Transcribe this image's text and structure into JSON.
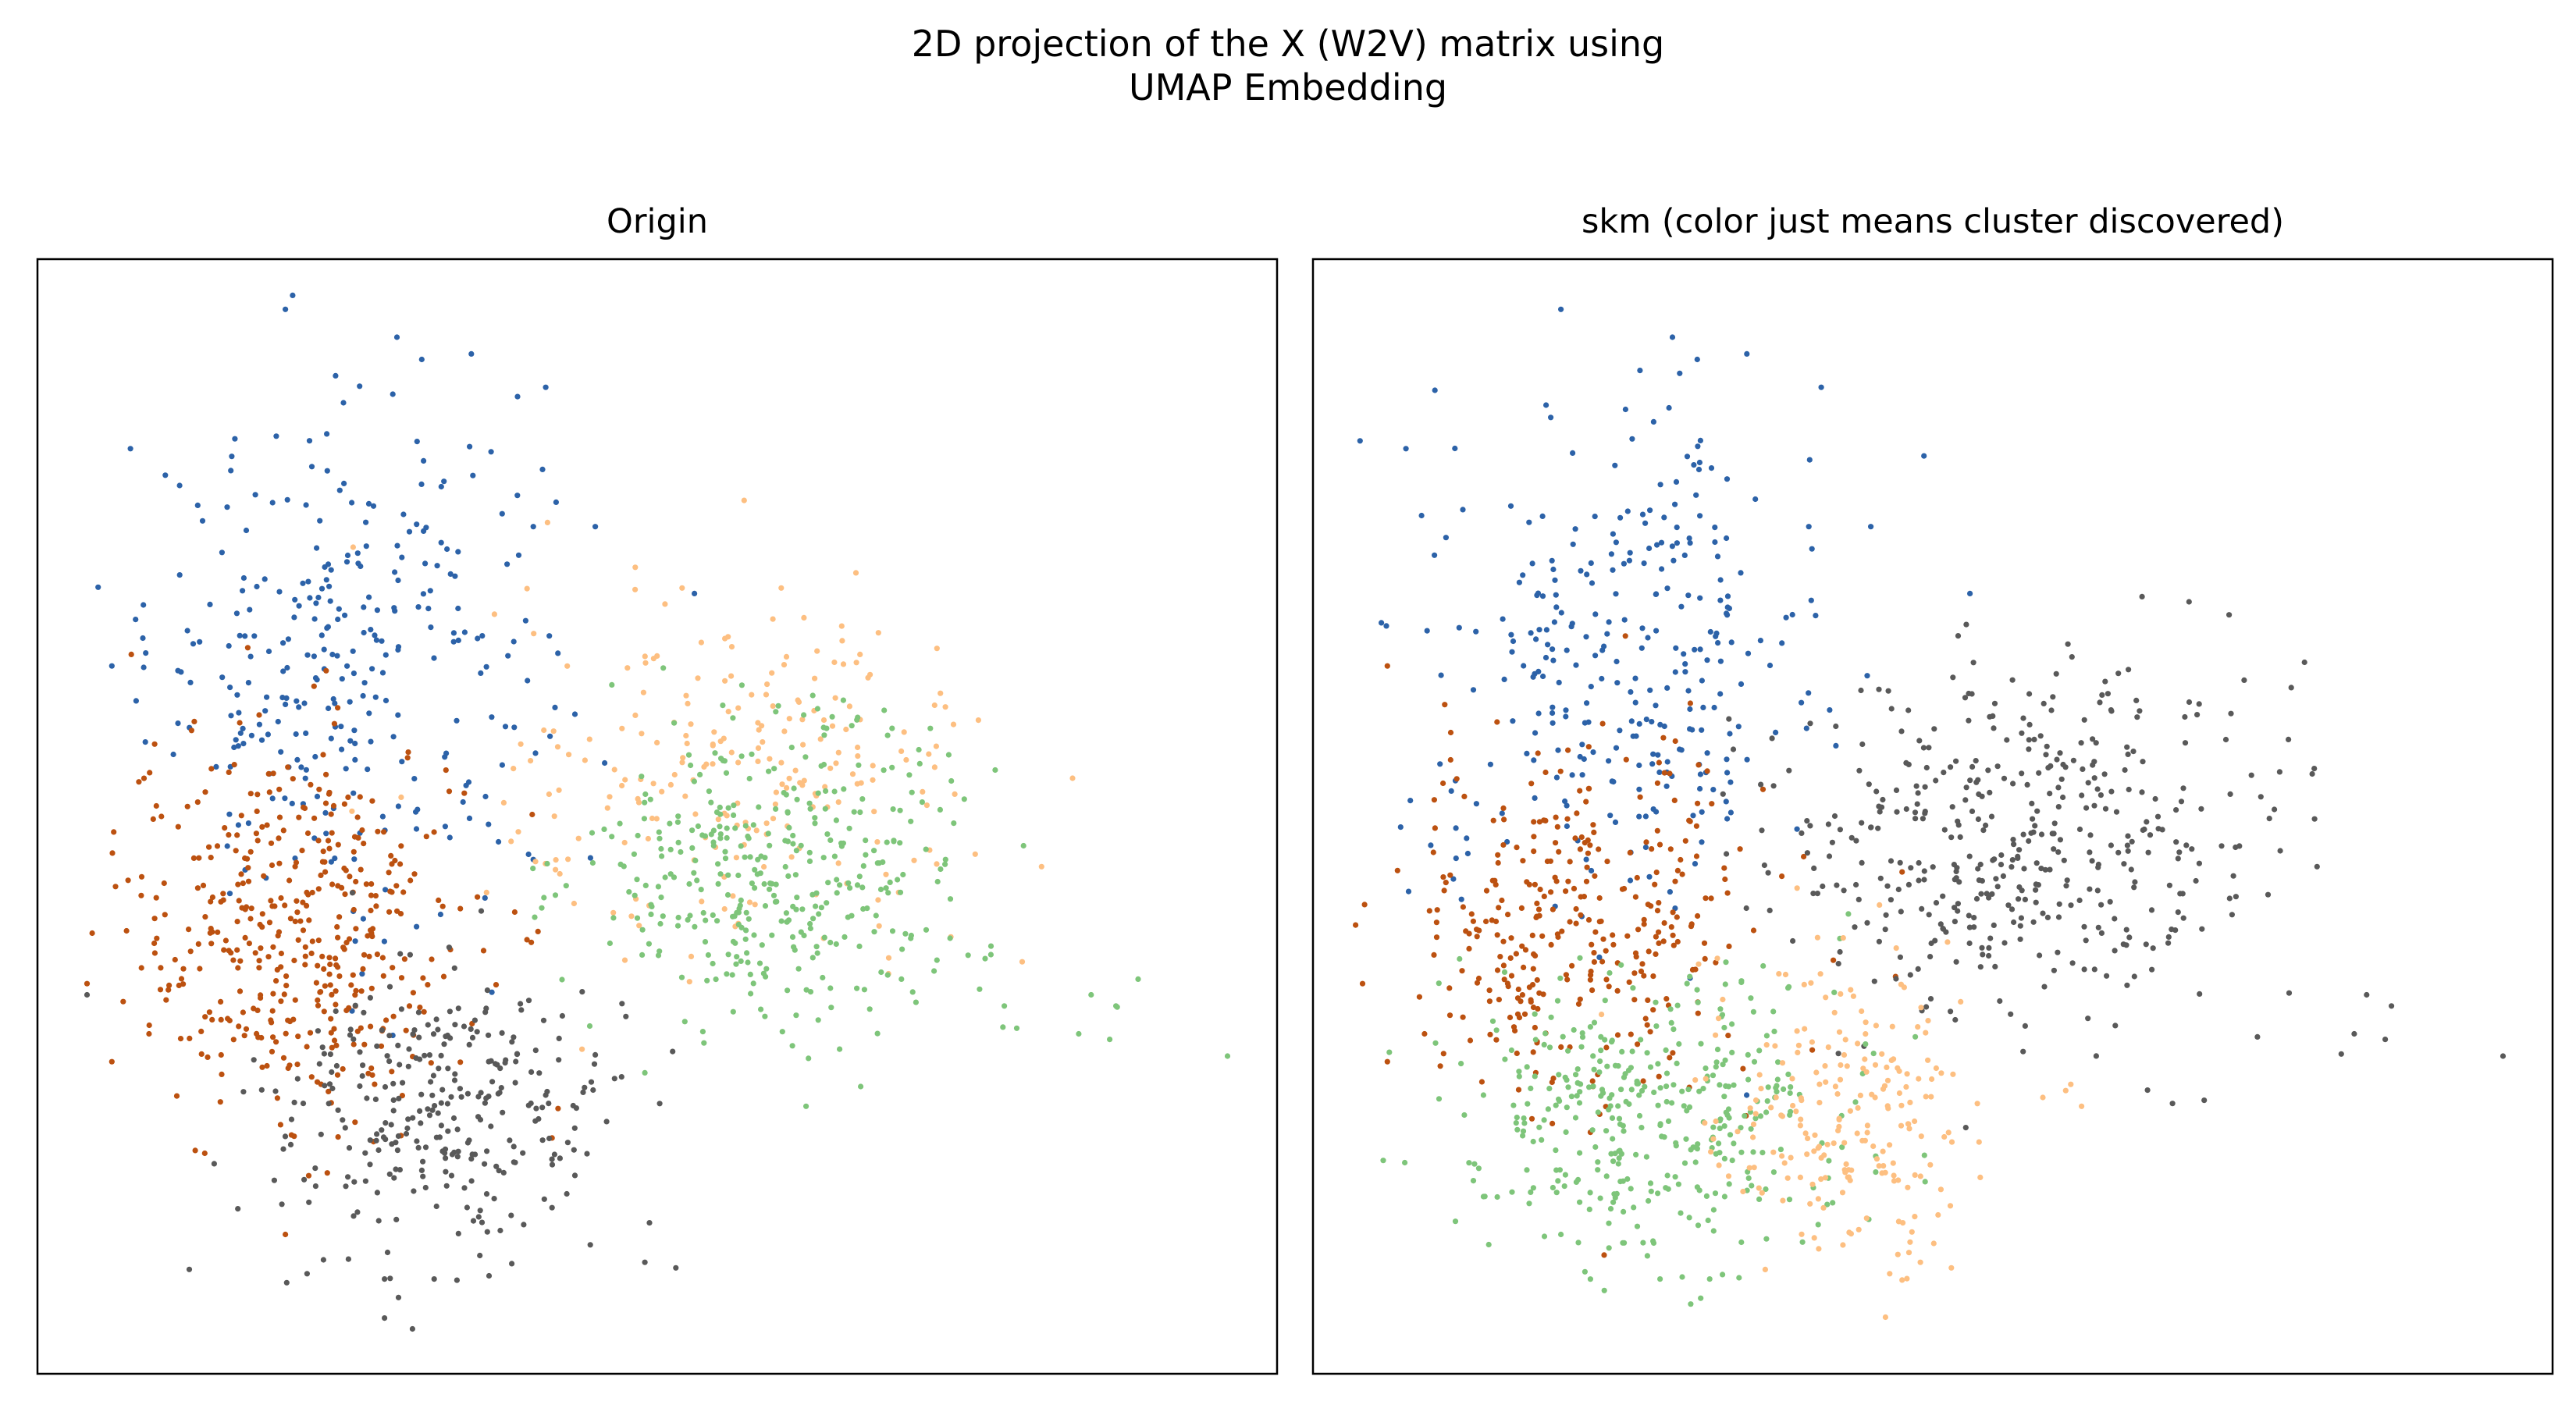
{
  "figure": {
    "title_line1": "2D projection of the X (W2V) matrix using",
    "title_line2": "UMAP Embedding"
  },
  "colors": {
    "blue": "#2c62a8",
    "orange_dark": "#bc5110",
    "orange_light": "#fdbf81",
    "green": "#7ec57a",
    "gray": "#595959"
  },
  "chart_data": [
    {
      "type": "scatter",
      "title": "Origin",
      "xlabel": "",
      "ylabel": "",
      "ticks": "none",
      "xlim": [
        0,
        100
      ],
      "ylim": [
        0,
        100
      ],
      "clusters": [
        {
          "color": "#2c62a8",
          "n": 300,
          "center": [
            25,
            64
          ],
          "spread": [
            8,
            11
          ],
          "extra": [
            [
              20,
              95.5
            ],
            [
              29,
              93
            ],
            [
              31,
              91
            ],
            [
              35,
              91.5
            ],
            [
              41,
              88.5
            ],
            [
              7.5,
              83
            ],
            [
              6,
              63.5
            ],
            [
              8.5,
              66
            ],
            [
              40,
              76
            ],
            [
              45,
              76
            ],
            [
              53,
              70
            ]
          ]
        },
        {
          "color": "#bc5110",
          "n": 420,
          "center": [
            21,
            40
          ],
          "spread": [
            7,
            9
          ],
          "extra": [
            [
              4,
              35
            ],
            [
              6,
              28
            ],
            [
              9,
              30.5
            ],
            [
              10,
              50
            ],
            [
              15,
              42.5
            ],
            [
              20,
              12.5
            ]
          ]
        },
        {
          "color": "#fdbf81",
          "n": 230,
          "center": [
            57,
            53
          ],
          "spread": [
            10,
            8
          ],
          "extra": [
            [
              81,
              45.5
            ],
            [
              74,
              52
            ],
            [
              60,
              70.5
            ],
            [
              52,
              70.5
            ]
          ]
        },
        {
          "color": "#7ec57a",
          "n": 380,
          "center": [
            60,
            45
          ],
          "spread": [
            8,
            7
          ],
          "extra": [
            [
              96,
              28.5
            ],
            [
              87,
              33
            ],
            [
              86.5,
              30
            ],
            [
              84,
              30.5
            ],
            [
              78,
              33
            ],
            [
              79,
              31
            ],
            [
              76,
              34.5
            ],
            [
              85,
              34
            ],
            [
              62,
              24
            ],
            [
              49,
              27
            ]
          ]
        },
        {
          "color": "#595959",
          "n": 300,
          "center": [
            33,
            23.5
          ],
          "spread": [
            7,
            6
          ],
          "extra": [
            [
              41,
              25
            ],
            [
              28,
              8.5
            ],
            [
              32,
              8.5
            ],
            [
              28,
              5
            ],
            [
              49,
              10
            ],
            [
              51.5,
              9.5
            ],
            [
              4,
              34
            ]
          ]
        }
      ]
    },
    {
      "type": "scatter",
      "title": "skm (color just means cluster discovered)",
      "xlabel": "",
      "ylabel": "",
      "ticks": "none",
      "xlim": [
        0,
        100
      ],
      "ylim": [
        0,
        100
      ],
      "clusters": [
        {
          "color": "#2c62a8",
          "n": 300,
          "center": [
            25,
            64
          ],
          "spread": [
            8,
            11
          ],
          "extra": [
            [
              20,
              95.5
            ],
            [
              29,
              93
            ],
            [
              31,
              91
            ],
            [
              35,
              91.5
            ],
            [
              41,
              88.5
            ],
            [
              7.5,
              83
            ],
            [
              40,
              76
            ],
            [
              45,
              76
            ],
            [
              53,
              70
            ]
          ]
        },
        {
          "color": "#bc5110",
          "n": 330,
          "center": [
            21,
            40
          ],
          "spread": [
            7,
            8
          ],
          "extra": [
            [
              4,
              35
            ],
            [
              6,
              28
            ],
            [
              6,
              63.5
            ],
            [
              9,
              30.5
            ]
          ]
        },
        {
          "color": "#595959",
          "n": 440,
          "center": [
            58,
            48
          ],
          "spread": [
            10,
            8
          ],
          "extra": [
            [
              81,
              45.5
            ],
            [
              87,
              33
            ],
            [
              86.5,
              30
            ],
            [
              84,
              30.5
            ],
            [
              85,
              34
            ],
            [
              96,
              28.5
            ],
            [
              74,
              52
            ]
          ]
        },
        {
          "color": "#7ec57a",
          "n": 380,
          "center": [
            27,
            23
          ],
          "spread": [
            8,
            7
          ],
          "extra": [
            [
              28,
              8.5
            ],
            [
              32,
              8.5
            ],
            [
              20,
              12.5
            ]
          ]
        },
        {
          "color": "#fdbf81",
          "n": 220,
          "center": [
            43,
            24
          ],
          "spread": [
            6,
            7
          ],
          "extra": [
            [
              49,
              10
            ],
            [
              51.5,
              9.5
            ],
            [
              62,
              24
            ]
          ]
        }
      ]
    }
  ]
}
